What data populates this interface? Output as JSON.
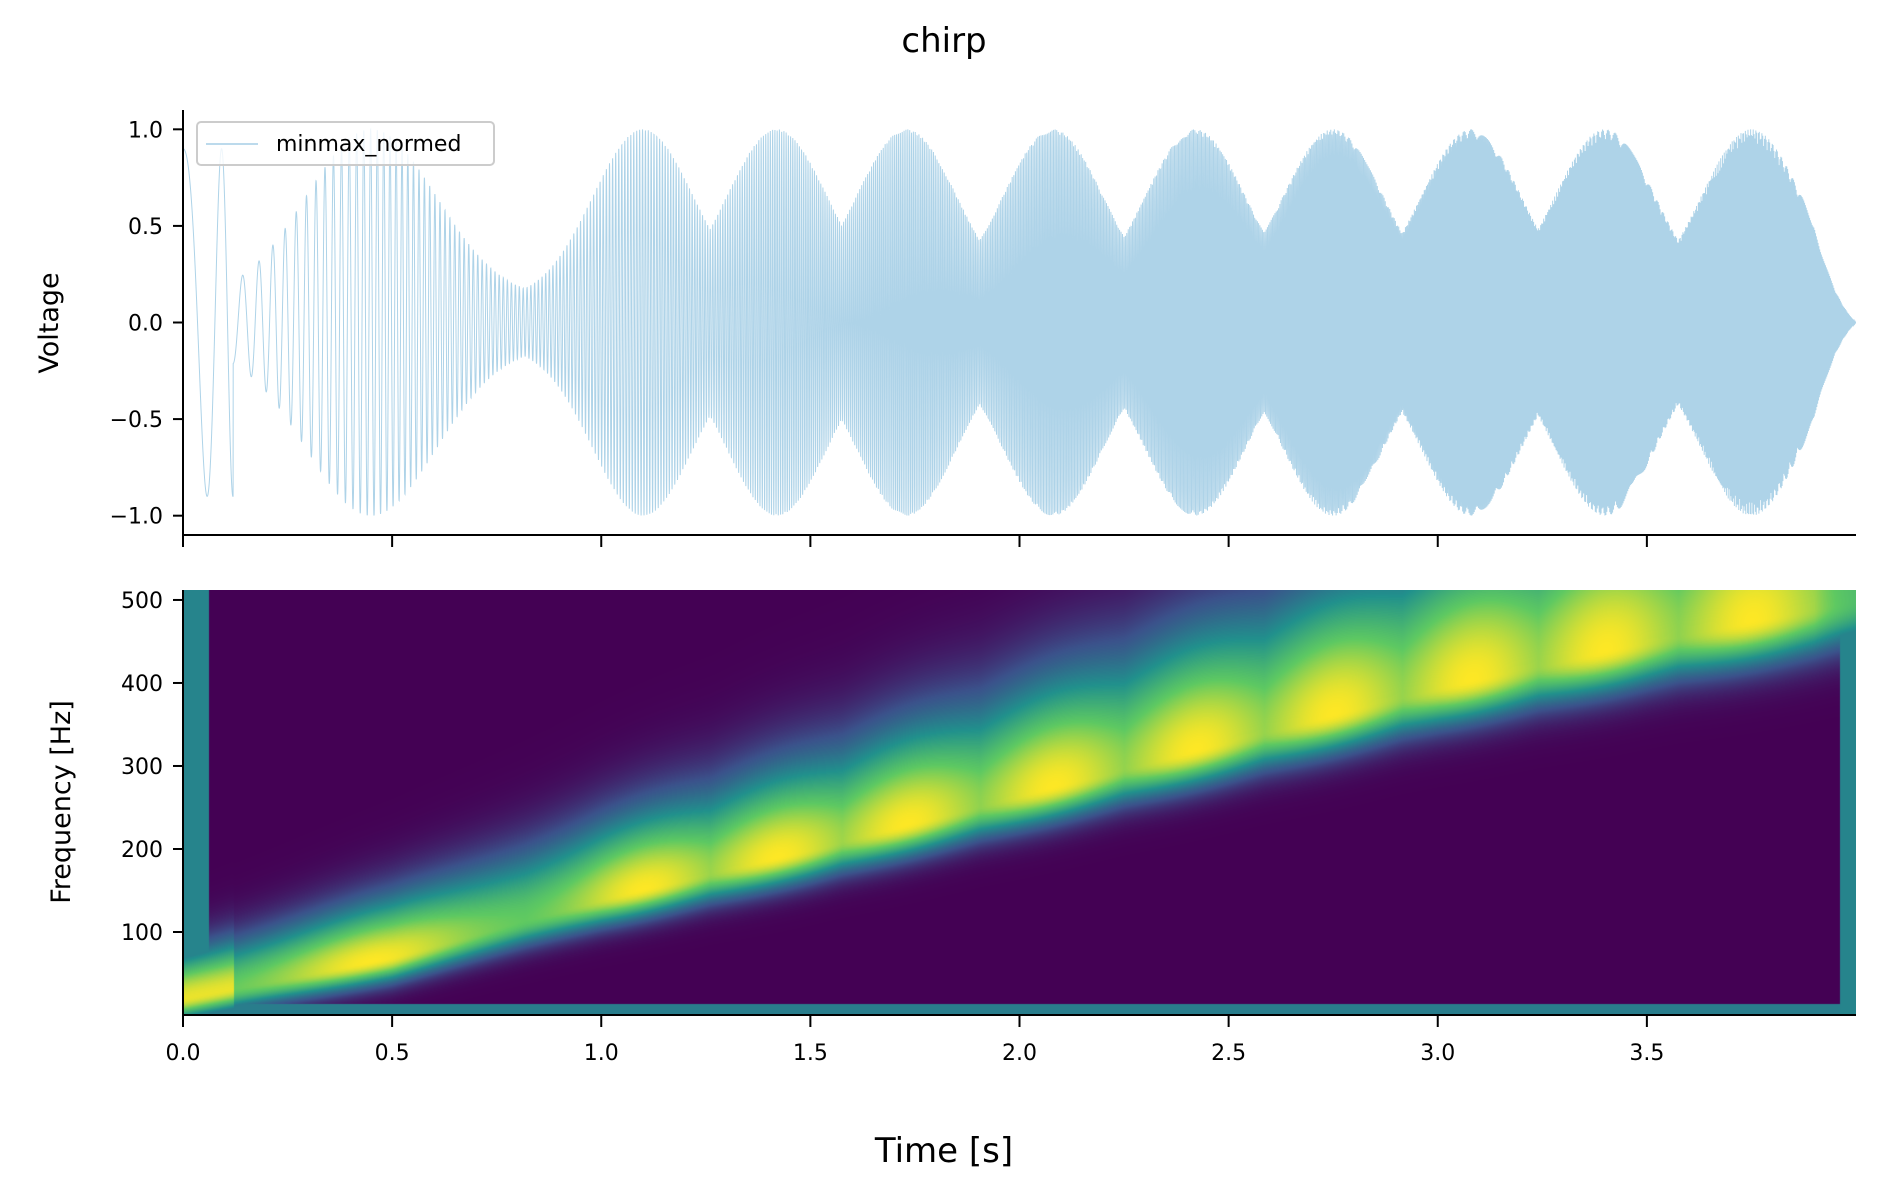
{
  "chart_data": [
    {
      "type": "line",
      "title": "chirp",
      "xlabel": "",
      "ylabel": "Voltage",
      "xlim": [
        0.0,
        4.0
      ],
      "ylim": [
        -1.1,
        1.1
      ],
      "yticks": [
        1.0,
        0.5,
        0.0,
        -0.5,
        -1.0
      ],
      "ytick_labels": [
        "1.0",
        "0.5",
        "0.0",
        "−0.5",
        "−1.0"
      ],
      "xticks": [
        0.0,
        0.5,
        1.0,
        1.5,
        2.0,
        2.5,
        3.0,
        3.5
      ],
      "legend": {
        "placement": "upper-left"
      },
      "series": [
        {
          "name": "minmax_normed",
          "color": "#6baed6",
          "signal": "linear chirp with beating envelope, amplitude normalized to [-1, 1]",
          "f0_hz": 5,
          "f1_hz": 512,
          "duration_s": 4.0,
          "envelope_lobe_peaks_s": [
            0.45,
            1.1,
            1.42,
            1.73,
            2.08,
            2.42,
            2.75,
            3.08,
            3.4,
            3.75
          ]
        }
      ],
      "grid": false
    },
    {
      "type": "heatmap",
      "xlabel": "Time [s]",
      "ylabel": "Frequency [Hz]",
      "xlim": [
        0.0,
        4.0
      ],
      "ylim": [
        0,
        512
      ],
      "xticks": [
        0.0,
        0.5,
        1.0,
        1.5,
        2.0,
        2.5,
        3.0,
        3.5
      ],
      "xtick_labels": [
        "0.0",
        "0.5",
        "1.0",
        "1.5",
        "2.0",
        "2.5",
        "3.0",
        "3.5"
      ],
      "yticks": [
        100,
        200,
        300,
        400,
        500
      ],
      "ytick_labels": [
        "100",
        "200",
        "300",
        "400",
        "500"
      ],
      "colormap": "viridis",
      "colormap_stops": [
        "#440154",
        "#3b528b",
        "#21918c",
        "#5ec962",
        "#fde725"
      ],
      "ridge_hz_at_s": [
        [
          0.0,
          20
        ],
        [
          0.5,
          70
        ],
        [
          1.0,
          140
        ],
        [
          1.5,
          200
        ],
        [
          2.0,
          265
        ],
        [
          2.5,
          330
        ],
        [
          3.0,
          395
        ],
        [
          3.5,
          450
        ],
        [
          4.0,
          500
        ]
      ],
      "grid": false
    }
  ]
}
